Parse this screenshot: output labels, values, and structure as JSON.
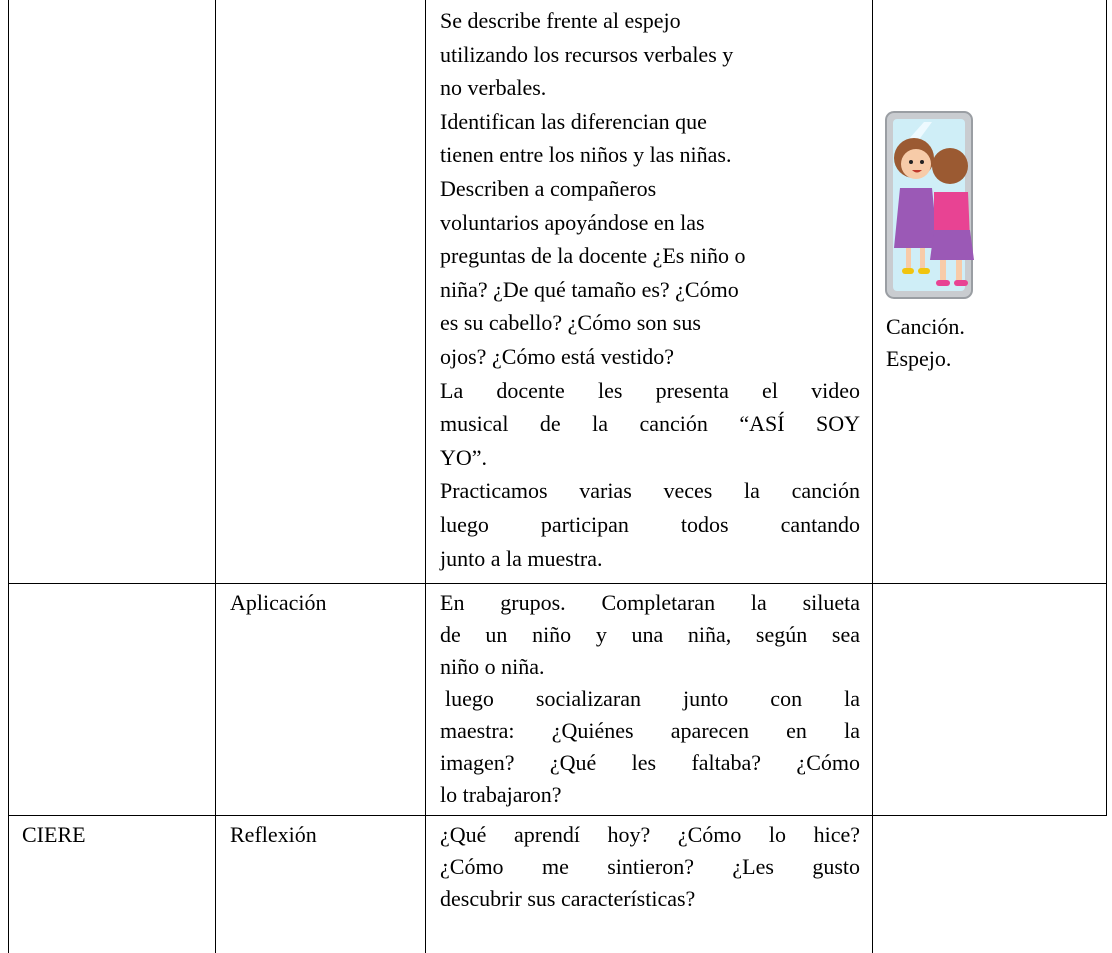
{
  "table": {
    "rows": [
      {
        "col3": [
          "Se describe frente al espejo",
          "utilizando los recursos verbales y",
          "no verbales.",
          "Identifican las diferencian que",
          "tienen entre los niños y las niñas.",
          "Describen a compañeros",
          "voluntarios apoyándose en las",
          "preguntas de la docente ¿Es niño o",
          "niña? ¿De qué tamaño es? ¿Cómo",
          "es su cabello? ¿Cómo son sus",
          "ojos? ¿Cómo está vestido?",
          "La docente les presenta el video",
          "musical de la canción “ASÍ SOY",
          "YO”.",
          "Practicamos varias veces la canción",
          "luego participan todos cantando",
          "junto a la muestra."
        ],
        "col4": [
          "Canción.",
          "Espejo."
        ]
      },
      {
        "col2": "Aplicación",
        "col3": [
          "En grupos. Completaran la silueta",
          "de un niño y una niña, según sea",
          "niño o niña.",
          "luego socializaran junto con la",
          "maestra: ¿Quiénes aparecen en la",
          "imagen? ¿Qué les faltaba? ¿Cómo",
          "lo trabajaron?"
        ]
      },
      {
        "col1": "CIERE",
        "col2": "Reflexión",
        "col3": [
          "¿Qué aprendí hoy? ¿Cómo lo hice?",
          "¿Cómo me sintieron? ¿Les gusto",
          "descubrir sus características?"
        ]
      }
    ]
  }
}
